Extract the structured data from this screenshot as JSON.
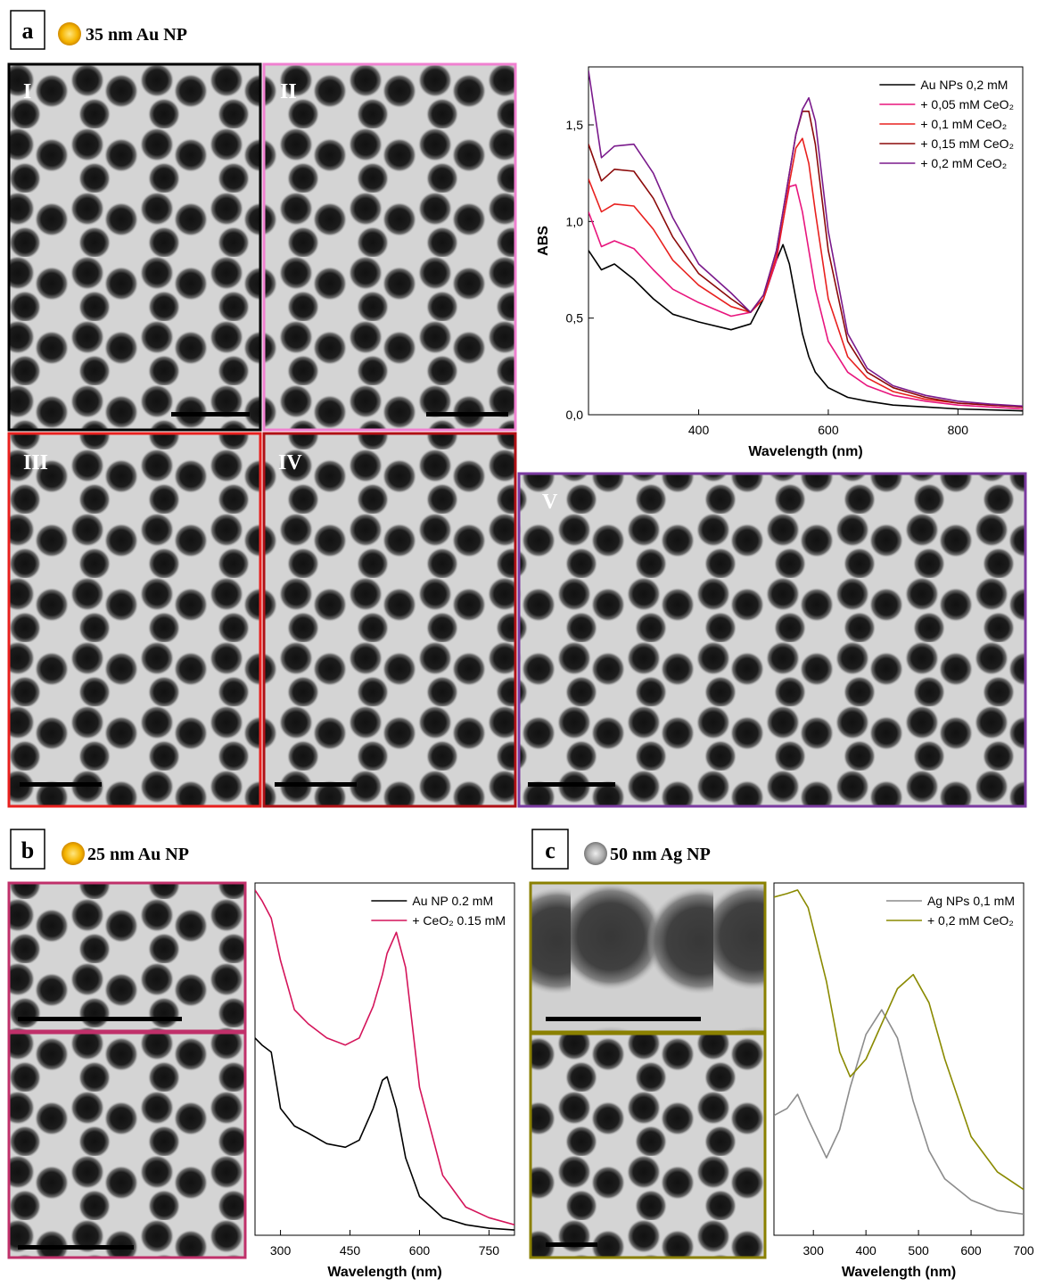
{
  "panels": [
    {
      "label": "a",
      "title": "35 nm Au NP",
      "images": [
        "I",
        "II",
        "III",
        "IV",
        "V"
      ]
    },
    {
      "label": "b",
      "title": "25 nm Au NP"
    },
    {
      "label": "c",
      "title": "50 nm Ag NP"
    }
  ],
  "chart_data": [
    {
      "type": "line",
      "xlabel": "Wavelength (nm)",
      "ylabel": "ABS",
      "legend": "upper right",
      "x": [
        230,
        250,
        270,
        300,
        330,
        360,
        400,
        450,
        480,
        500,
        520,
        530,
        540,
        550,
        560,
        570,
        580,
        600,
        630,
        660,
        700,
        750,
        800,
        850,
        900
      ],
      "xlim": [
        230,
        900
      ],
      "xticks": [
        400,
        600,
        800
      ],
      "ylim": [
        0,
        1.8
      ],
      "yticks": [
        {
          "value": 0,
          "label": "0,0"
        },
        {
          "value": 0.5,
          "label": "0,5"
        },
        {
          "value": 1,
          "label": "1,0"
        },
        {
          "value": 1.5,
          "label": "1,5"
        }
      ],
      "series": [
        {
          "name": "Au NPs 0,2 mM",
          "color": "#000000",
          "values": [
            0.85,
            0.75,
            0.78,
            0.7,
            0.6,
            0.52,
            0.48,
            0.44,
            0.47,
            0.6,
            0.8,
            0.88,
            0.78,
            0.6,
            0.42,
            0.3,
            0.22,
            0.14,
            0.09,
            0.07,
            0.05,
            0.04,
            0.03,
            0.025,
            0.02
          ]
        },
        {
          "name": "+ 0,05 mM CeO₂",
          "color": "#e8157d",
          "values": [
            1.05,
            0.87,
            0.9,
            0.86,
            0.75,
            0.65,
            0.58,
            0.51,
            0.53,
            0.6,
            0.8,
            1.0,
            1.18,
            1.19,
            1.05,
            0.85,
            0.65,
            0.38,
            0.22,
            0.15,
            0.1,
            0.07,
            0.05,
            0.04,
            0.03
          ]
        },
        {
          "name": "+ 0,1 mM CeO₂",
          "color": "#e8201e",
          "values": [
            1.22,
            1.05,
            1.09,
            1.08,
            0.96,
            0.8,
            0.67,
            0.56,
            0.53,
            0.6,
            0.82,
            1.0,
            1.2,
            1.38,
            1.43,
            1.3,
            1.05,
            0.6,
            0.3,
            0.19,
            0.12,
            0.08,
            0.06,
            0.05,
            0.04
          ]
        },
        {
          "name": "+ 0,15 mM CeO₂",
          "color": "#8b0a0a",
          "values": [
            1.4,
            1.21,
            1.27,
            1.26,
            1.12,
            0.92,
            0.73,
            0.6,
            0.53,
            0.62,
            0.85,
            1.05,
            1.25,
            1.45,
            1.57,
            1.57,
            1.4,
            0.85,
            0.38,
            0.22,
            0.14,
            0.09,
            0.06,
            0.05,
            0.04
          ]
        },
        {
          "name": "+ 0,2 mM CeO₂",
          "color": "#7a1a8c",
          "values": [
            1.78,
            1.33,
            1.39,
            1.4,
            1.25,
            1.02,
            0.78,
            0.63,
            0.53,
            0.62,
            0.85,
            1.05,
            1.25,
            1.45,
            1.58,
            1.64,
            1.52,
            0.95,
            0.42,
            0.24,
            0.15,
            0.1,
            0.07,
            0.055,
            0.045
          ]
        }
      ]
    },
    {
      "type": "line",
      "xlabel": "Wavelength (nm)",
      "legend": "upper right",
      "x": [
        245,
        260,
        280,
        300,
        330,
        360,
        400,
        440,
        470,
        500,
        520,
        530,
        550,
        570,
        600,
        650,
        700,
        750,
        805
      ],
      "xlim": [
        245,
        805
      ],
      "xticks": [
        300,
        450,
        600,
        750
      ],
      "ylim": [
        0,
        1
      ],
      "series": [
        {
          "name": "Au NP 0.2 mM",
          "color": "#000000",
          "values": [
            0.56,
            0.54,
            0.52,
            0.36,
            0.31,
            0.29,
            0.26,
            0.25,
            0.27,
            0.36,
            0.44,
            0.45,
            0.36,
            0.22,
            0.11,
            0.05,
            0.03,
            0.02,
            0.015
          ]
        },
        {
          "name": "+ CeO₂ 0.15 mM",
          "color": "#d4145a",
          "values": [
            0.98,
            0.95,
            0.9,
            0.78,
            0.64,
            0.6,
            0.56,
            0.54,
            0.56,
            0.65,
            0.74,
            0.8,
            0.86,
            0.76,
            0.42,
            0.17,
            0.08,
            0.05,
            0.03
          ]
        }
      ]
    },
    {
      "type": "line",
      "xlabel": "Wavelength (nm)",
      "legend": "upper right",
      "x": [
        225,
        250,
        270,
        290,
        325,
        350,
        370,
        400,
        430,
        460,
        490,
        520,
        550,
        600,
        650,
        700
      ],
      "xlim": [
        225,
        700
      ],
      "xticks": [
        300,
        400,
        500,
        600,
        700
      ],
      "ylim": [
        0,
        1
      ],
      "series": [
        {
          "name": "Ag NPs 0,1 mM",
          "color": "#8c8c8c",
          "values": [
            0.34,
            0.36,
            0.4,
            0.33,
            0.22,
            0.3,
            0.42,
            0.57,
            0.64,
            0.56,
            0.38,
            0.24,
            0.16,
            0.1,
            0.07,
            0.06
          ]
        },
        {
          "name": "+ 0,2 mM CeO₂",
          "color": "#8a8a00",
          "values": [
            0.96,
            0.97,
            0.98,
            0.93,
            0.72,
            0.52,
            0.45,
            0.5,
            0.6,
            0.7,
            0.74,
            0.66,
            0.5,
            0.28,
            0.18,
            0.13
          ]
        }
      ]
    }
  ]
}
